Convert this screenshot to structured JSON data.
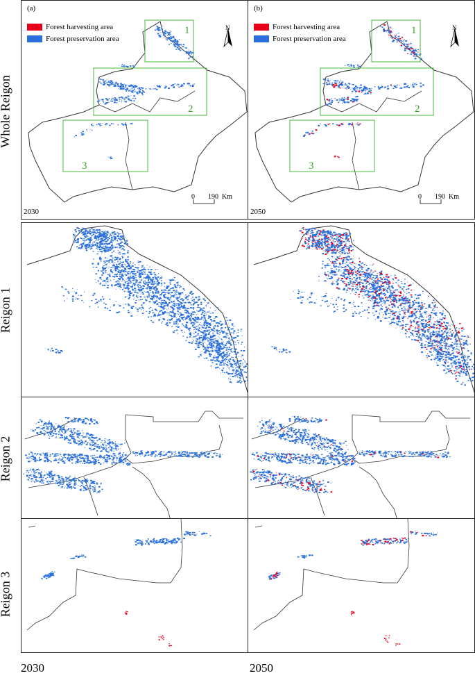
{
  "panels": {
    "a": {
      "letter": "(a)",
      "year": "2030"
    },
    "b": {
      "letter": "(b)",
      "year": "2050"
    }
  },
  "legend": {
    "harvesting": {
      "label": "Forest harvesting area",
      "color": "#e8001a"
    },
    "preservation": {
      "label": "Forest preservation area",
      "color": "#1f6fe0"
    }
  },
  "north_label": "N",
  "scale": {
    "zero": "0",
    "distance": "190",
    "unit": "Km"
  },
  "region_numbers": [
    "1",
    "2",
    "3"
  ],
  "row_labels": {
    "whole": "Whole Reigon",
    "r1": "Reigon 1",
    "r2": "Reigon 2",
    "r3": "Reigon 3"
  },
  "bottom_years": {
    "left": "2030",
    "right": "2050"
  },
  "colors": {
    "harvest": "#e8001a",
    "preserve": "#2a6fdc",
    "box": "#49b83b",
    "outline": "#333333"
  }
}
